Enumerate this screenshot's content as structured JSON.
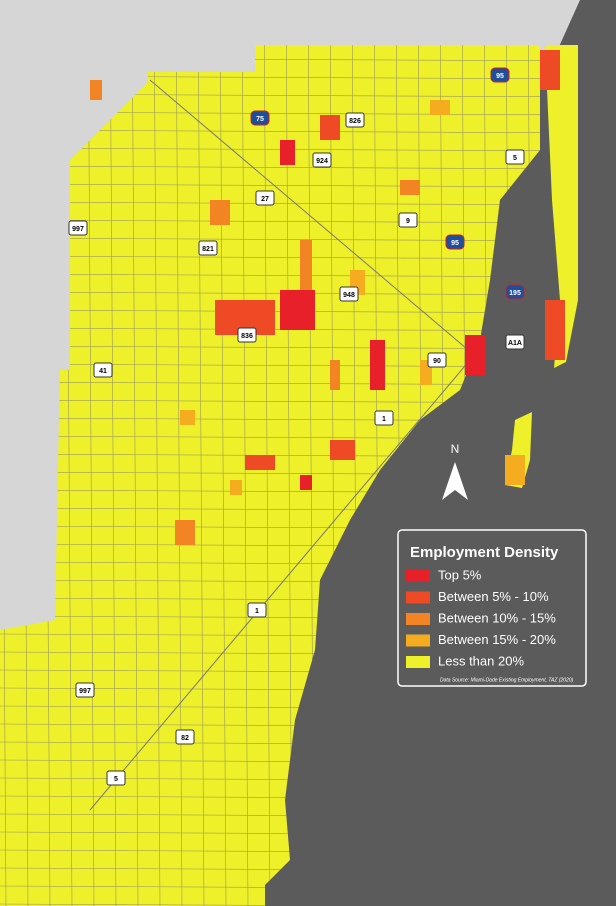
{
  "legend": {
    "title": "Employment Density",
    "items": [
      {
        "label": "Top 5%",
        "color": "#e8202a"
      },
      {
        "label": "Between 5% - 10%",
        "color": "#ee4a25"
      },
      {
        "label": "Between 10% - 15%",
        "color": "#f28424"
      },
      {
        "label": "Between 15% - 20%",
        "color": "#f5ac1e"
      },
      {
        "label": "Less than 20%",
        "color": "#eef02a"
      }
    ],
    "source": "Data Source: Miami-Dade Existing Employment, TAZ (2020)"
  },
  "north_label": "N",
  "shields": [
    "95",
    "75",
    "826",
    "924",
    "5",
    "27",
    "9",
    "997",
    "821",
    "95",
    "948",
    "195",
    "836",
    "90",
    "A1A",
    "41",
    "1",
    "1",
    "997",
    "82",
    "5"
  ]
}
